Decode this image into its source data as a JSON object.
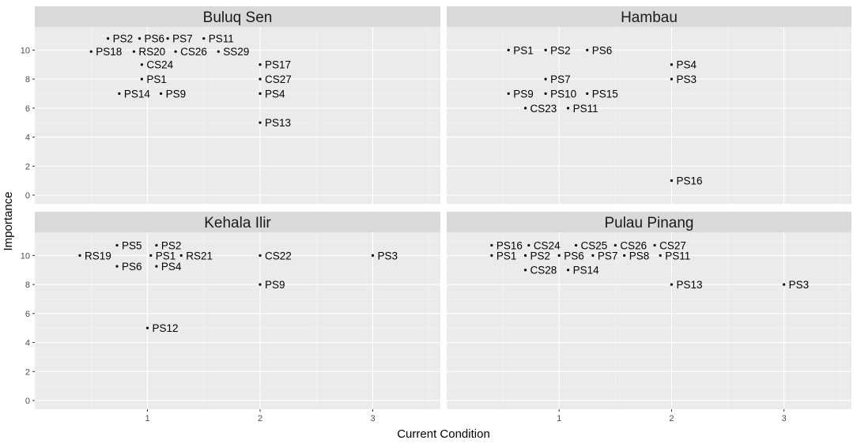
{
  "chart_data": {
    "type": "scatter",
    "xlabel": "Current Condition",
    "ylabel": "Importance",
    "xlim": [
      0.0,
      3.6
    ],
    "ylim": [
      -0.6,
      11.6
    ],
    "x_ticks": [
      1,
      2,
      3
    ],
    "y_ticks": [
      0,
      2,
      4,
      6,
      8,
      10
    ],
    "grid": true,
    "facets": [
      {
        "title": "Buluq Sen",
        "points": [
          {
            "label": "PS2",
            "x": 0.65,
            "y": 10.8
          },
          {
            "label": "PS6",
            "x": 0.93,
            "y": 10.8
          },
          {
            "label": "PS7",
            "x": 1.18,
            "y": 10.8
          },
          {
            "label": "PS11",
            "x": 1.5,
            "y": 10.8
          },
          {
            "label": "PS18",
            "x": 0.5,
            "y": 9.9
          },
          {
            "label": "RS20",
            "x": 0.88,
            "y": 9.9
          },
          {
            "label": "CS26",
            "x": 1.25,
            "y": 9.9
          },
          {
            "label": "SS29",
            "x": 1.63,
            "y": 9.9
          },
          {
            "label": "CS24",
            "x": 0.95,
            "y": 9.0
          },
          {
            "label": "PS1",
            "x": 0.95,
            "y": 8.0
          },
          {
            "label": "PS14",
            "x": 0.75,
            "y": 7.0
          },
          {
            "label": "PS9",
            "x": 1.12,
            "y": 7.0
          },
          {
            "label": "PS17",
            "x": 2.0,
            "y": 9.0
          },
          {
            "label": "CS27",
            "x": 2.0,
            "y": 8.0
          },
          {
            "label": "PS4",
            "x": 2.0,
            "y": 7.0
          },
          {
            "label": "PS13",
            "x": 2.0,
            "y": 5.0
          }
        ]
      },
      {
        "title": "Hambau",
        "points": [
          {
            "label": "PS1",
            "x": 0.55,
            "y": 10.0
          },
          {
            "label": "PS2",
            "x": 0.88,
            "y": 10.0
          },
          {
            "label": "PS6",
            "x": 1.25,
            "y": 10.0
          },
          {
            "label": "PS4",
            "x": 2.0,
            "y": 9.0
          },
          {
            "label": "PS7",
            "x": 0.88,
            "y": 8.0
          },
          {
            "label": "PS3",
            "x": 2.0,
            "y": 8.0
          },
          {
            "label": "PS9",
            "x": 0.55,
            "y": 7.0
          },
          {
            "label": "PS10",
            "x": 0.88,
            "y": 7.0
          },
          {
            "label": "PS15",
            "x": 1.25,
            "y": 7.0
          },
          {
            "label": "CS23",
            "x": 0.7,
            "y": 6.0
          },
          {
            "label": "PS11",
            "x": 1.08,
            "y": 6.0
          },
          {
            "label": "PS16",
            "x": 2.0,
            "y": 1.0
          }
        ]
      },
      {
        "title": "Kehala Ilir",
        "points": [
          {
            "label": "PS5",
            "x": 0.73,
            "y": 10.7
          },
          {
            "label": "PS2",
            "x": 1.08,
            "y": 10.7
          },
          {
            "label": "RS19",
            "x": 0.4,
            "y": 10.0
          },
          {
            "label": "PS1",
            "x": 1.03,
            "y": 10.0
          },
          {
            "label": "RS21",
            "x": 1.3,
            "y": 10.0
          },
          {
            "label": "PS6",
            "x": 0.73,
            "y": 9.25
          },
          {
            "label": "PS4",
            "x": 1.08,
            "y": 9.25
          },
          {
            "label": "CS22",
            "x": 2.0,
            "y": 10.0
          },
          {
            "label": "PS3",
            "x": 3.0,
            "y": 10.0
          },
          {
            "label": "PS9",
            "x": 2.0,
            "y": 8.0
          },
          {
            "label": "PS12",
            "x": 1.0,
            "y": 5.0
          }
        ]
      },
      {
        "title": "Pulau Pinang",
        "points": [
          {
            "label": "PS16",
            "x": 0.4,
            "y": 10.7
          },
          {
            "label": "CS24",
            "x": 0.73,
            "y": 10.7
          },
          {
            "label": "CS25",
            "x": 1.15,
            "y": 10.7
          },
          {
            "label": "CS26",
            "x": 1.5,
            "y": 10.7
          },
          {
            "label": "CS27",
            "x": 1.85,
            "y": 10.7
          },
          {
            "label": "PS1",
            "x": 0.4,
            "y": 10.0
          },
          {
            "label": "PS2",
            "x": 0.7,
            "y": 10.0
          },
          {
            "label": "PS6",
            "x": 1.0,
            "y": 10.0
          },
          {
            "label": "PS7",
            "x": 1.3,
            "y": 10.0
          },
          {
            "label": "PS8",
            "x": 1.58,
            "y": 10.0
          },
          {
            "label": "PS11",
            "x": 1.9,
            "y": 10.0
          },
          {
            "label": "CS28",
            "x": 0.7,
            "y": 9.0
          },
          {
            "label": "PS14",
            "x": 1.08,
            "y": 9.0
          },
          {
            "label": "PS13",
            "x": 2.0,
            "y": 8.0
          },
          {
            "label": "PS3",
            "x": 3.0,
            "y": 8.0
          }
        ]
      }
    ]
  }
}
